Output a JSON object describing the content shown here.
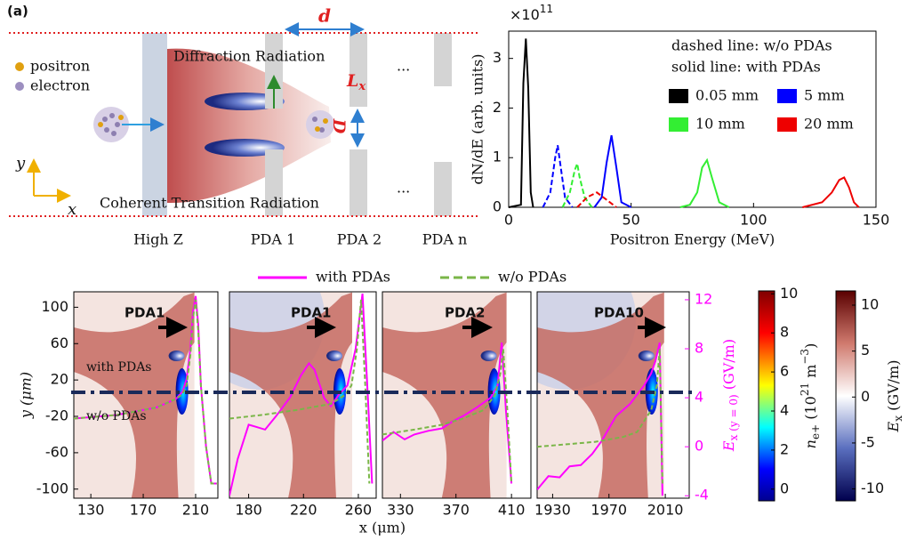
{
  "schematic": {
    "panel_label": "(a)",
    "legend": [
      "positron",
      "electron"
    ],
    "diffraction": "Diffraction Radiation",
    "ctr": "Coherent Transition Radiation",
    "d": "d",
    "L": "L",
    "L_sub": "x",
    "D": "D",
    "ellipsis": "...",
    "axis_y": "y",
    "axis_x": "x",
    "labels": [
      "High Z",
      "PDA 1",
      "PDA 2",
      "PDA n"
    ]
  },
  "chart_data": [
    {
      "type": "line",
      "xlabel": "Positron Energy (MeV)",
      "ylabel": "dN/dE (arb. units)",
      "y_multiplier": "×10",
      "y_exponent": "11",
      "notes": [
        "dashed line: w/o PDAs",
        "solid line: with PDAs"
      ],
      "xlim": [
        0,
        150
      ],
      "xticks": [
        0,
        50,
        100,
        150
      ],
      "ylim": [
        0,
        3.55
      ],
      "yticks": [
        0,
        1,
        2,
        3
      ],
      "series": [
        {
          "name": "0.05 mm",
          "color": "#000000",
          "x": [
            0,
            5,
            6,
            7,
            8,
            9,
            10
          ],
          "values": [
            0,
            0.05,
            2.5,
            3.4,
            2.4,
            0.3,
            0
          ]
        },
        {
          "name": "5 mm",
          "color": "#0000ff",
          "x": [
            35,
            38,
            40,
            42,
            44,
            46,
            50
          ],
          "values": [
            0,
            0.2,
            0.9,
            1.45,
            0.8,
            0.1,
            0
          ],
          "dashed_x": [
            14,
            17,
            19,
            20,
            21,
            23,
            26
          ],
          "dashed_values": [
            0,
            0.3,
            1.0,
            1.25,
            0.9,
            0.2,
            0
          ]
        },
        {
          "name": "10 mm",
          "color": "#33ee33",
          "x": [
            70,
            74,
            77,
            79,
            81,
            83,
            86,
            90
          ],
          "values": [
            0,
            0.05,
            0.3,
            0.8,
            0.95,
            0.6,
            0.1,
            0
          ],
          "dashed_x": [
            22,
            25,
            27,
            28,
            29,
            31,
            34
          ],
          "dashed_values": [
            0,
            0.3,
            0.75,
            0.88,
            0.6,
            0.2,
            0
          ]
        },
        {
          "name": "20 mm",
          "color": "#ee0000",
          "x": [
            120,
            128,
            132,
            135,
            137,
            139,
            141,
            143
          ],
          "values": [
            0,
            0.1,
            0.3,
            0.55,
            0.6,
            0.4,
            0.1,
            0
          ],
          "dashed_x": [
            28,
            32,
            36,
            40,
            44
          ],
          "dashed_values": [
            0,
            0.2,
            0.3,
            0.15,
            0
          ]
        }
      ]
    },
    {
      "type": "field",
      "ylabel": "y (μm)",
      "xlim": [
        117,
        227
      ],
      "xticks": [
        130,
        170,
        210
      ],
      "ylim": [
        -110,
        117
      ],
      "yticks": [
        -100,
        -60,
        -20,
        20,
        60,
        100
      ],
      "y2lim": [
        -4.2,
        12.65
      ],
      "annotations": [
        "PDA1",
        "with PDAs",
        "w/o PDAs"
      ],
      "series": [
        {
          "name": "with PDAs",
          "color": "#ff00ff",
          "axis": "y2",
          "x": [
            117,
            150,
            180,
            195,
            200,
            203,
            206,
            208,
            210,
            212,
            214,
            218,
            222,
            227
          ],
          "values": [
            2.3,
            2.6,
            3.2,
            3.9,
            4.5,
            5.5,
            8,
            11,
            12.3,
            10,
            5,
            0,
            -3,
            -3
          ]
        },
        {
          "name": "w/o PDAs",
          "color": "#7ab648",
          "axis": "y2",
          "x": [
            117,
            150,
            180,
            195,
            200,
            203,
            206,
            208,
            210,
            212,
            214,
            218,
            222,
            227
          ],
          "values": [
            2.3,
            2.6,
            3.2,
            3.9,
            4.3,
            5.0,
            7.5,
            10.5,
            12,
            9.5,
            5,
            0,
            -3,
            -3
          ]
        }
      ]
    },
    {
      "type": "field",
      "xlim": [
        166,
        273
      ],
      "xticks": [
        180,
        220,
        260
      ],
      "ylim": [
        -110,
        117
      ],
      "y2lim": [
        -4.2,
        12.65
      ],
      "annotations": [
        "PDA1"
      ],
      "series": [
        {
          "name": "with PDAs",
          "color": "#ff00ff",
          "axis": "y2",
          "x": [
            166,
            172,
            180,
            186,
            192,
            200,
            210,
            218,
            224,
            228,
            235,
            240,
            246,
            252,
            258,
            263,
            267,
            270
          ],
          "values": [
            -4,
            -1,
            1.8,
            1.6,
            1.4,
            2.5,
            4,
            5.8,
            6.8,
            6.3,
            4,
            3.3,
            4.3,
            5,
            8,
            12.5,
            4,
            -3
          ]
        },
        {
          "name": "w/o PDAs",
          "color": "#7ab648",
          "axis": "y2",
          "x": [
            166,
            190,
            215,
            240,
            250,
            255,
            259,
            262,
            265,
            268
          ],
          "values": [
            2.3,
            2.6,
            3.0,
            3.5,
            4.2,
            5,
            8,
            12,
            5,
            -3
          ]
        }
      ]
    },
    {
      "type": "field",
      "xlim": [
        317,
        424
      ],
      "xticks": [
        330,
        370,
        410
      ],
      "ylim": [
        -110,
        117
      ],
      "y2lim": [
        -4.2,
        12.65
      ],
      "xlabel": "x (μm)",
      "annotations": [
        "PDA2"
      ],
      "series": [
        {
          "name": "with PDAs",
          "color": "#ff00ff",
          "axis": "y2",
          "x": [
            317,
            325,
            333,
            340,
            350,
            360,
            368,
            375,
            385,
            395,
            400,
            403,
            406,
            410
          ],
          "values": [
            0.5,
            1.2,
            0.6,
            1,
            1.3,
            1.5,
            2.1,
            2.5,
            3.2,
            4,
            5,
            8.5,
            3,
            -3
          ]
        },
        {
          "name": "w/o PDAs",
          "color": "#7ab648",
          "axis": "y2",
          "x": [
            317,
            340,
            360,
            375,
            390,
            398,
            402,
            404,
            407,
            410
          ],
          "values": [
            1,
            1.4,
            1.8,
            2.3,
            3,
            4.2,
            6,
            8,
            3,
            -3
          ]
        }
      ]
    },
    {
      "type": "field",
      "xlim": [
        1919,
        2027
      ],
      "xticks": [
        1930,
        1970,
        2010
      ],
      "ylim": [
        -110,
        117
      ],
      "y2lim": [
        -4.2,
        12.65
      ],
      "y2ticks": [
        -4,
        0,
        4,
        8,
        12
      ],
      "y2label": [
        "E",
        "x (y = 0)",
        " (GV/m)"
      ],
      "annotations": [
        "PDA10"
      ],
      "series": [
        {
          "name": "with PDAs",
          "color": "#ff00ff",
          "axis": "y2",
          "x": [
            1919,
            1927,
            1935,
            1942,
            1950,
            1958,
            1965,
            1975,
            1985,
            1995,
            2000,
            2003,
            2006,
            2008
          ],
          "values": [
            -3.5,
            -2.4,
            -2.5,
            -1.6,
            -1.5,
            -0.6,
            0.5,
            2.5,
            3.5,
            5,
            6,
            7,
            8.5,
            -4
          ]
        },
        {
          "name": "w/o PDAs",
          "color": "#7ab648",
          "axis": "y2",
          "x": [
            1919,
            1940,
            1960,
            1980,
            1990,
            2000,
            2004,
            2006,
            2008
          ],
          "values": [
            0,
            0.2,
            0.4,
            0.8,
            1.2,
            3,
            5,
            8,
            -3
          ]
        }
      ]
    },
    {
      "type": "colorbar",
      "label": [
        "n",
        "e+",
        " (10",
        "21",
        " m",
        "−3",
        ")"
      ],
      "lim": [
        -0.6,
        10.15
      ],
      "ticks": [
        0,
        2,
        4,
        6,
        8,
        10
      ],
      "colormap": "jet"
    },
    {
      "type": "colorbar",
      "label": [
        "E",
        "x",
        " (GV/m)"
      ],
      "lim": [
        -11.3,
        11.55
      ],
      "ticks": [
        -10,
        -5,
        0,
        5,
        10
      ],
      "colormap": "seismic"
    }
  ]
}
